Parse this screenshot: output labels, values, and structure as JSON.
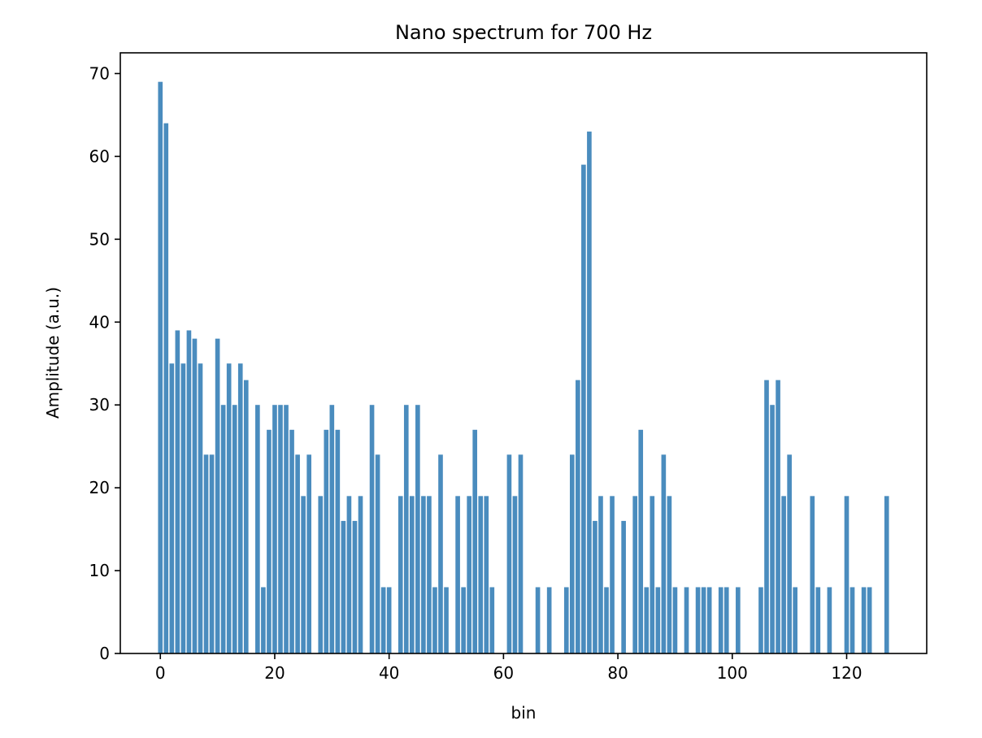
{
  "chart_data": {
    "type": "bar",
    "title": "Nano spectrum for 700 Hz",
    "xlabel": "bin",
    "ylabel": "Amplitude (a.u.)",
    "xlim": [
      -7,
      134
    ],
    "ylim": [
      0,
      72.5
    ],
    "xticks": [
      0,
      20,
      40,
      60,
      80,
      100,
      120
    ],
    "yticks": [
      0,
      10,
      20,
      30,
      40,
      50,
      60,
      70
    ],
    "grid": false,
    "legend": "none",
    "bar_color": "#4a8cbe",
    "x": [
      0,
      1,
      2,
      3,
      4,
      5,
      6,
      7,
      8,
      9,
      10,
      11,
      12,
      13,
      14,
      15,
      16,
      17,
      18,
      19,
      20,
      21,
      22,
      23,
      24,
      25,
      26,
      27,
      28,
      29,
      30,
      31,
      32,
      33,
      34,
      35,
      36,
      37,
      38,
      39,
      40,
      41,
      42,
      43,
      44,
      45,
      46,
      47,
      48,
      49,
      50,
      51,
      52,
      53,
      54,
      55,
      56,
      57,
      58,
      59,
      60,
      61,
      62,
      63,
      64,
      65,
      66,
      67,
      68,
      69,
      70,
      71,
      72,
      73,
      74,
      75,
      76,
      77,
      78,
      79,
      80,
      81,
      82,
      83,
      84,
      85,
      86,
      87,
      88,
      89,
      90,
      91,
      92,
      93,
      94,
      95,
      96,
      97,
      98,
      99,
      100,
      101,
      102,
      103,
      104,
      105,
      106,
      107,
      108,
      109,
      110,
      111,
      112,
      113,
      114,
      115,
      116,
      117,
      118,
      119,
      120,
      121,
      122,
      123,
      124,
      125,
      126,
      127
    ],
    "values": [
      69,
      64,
      35,
      39,
      35,
      39,
      38,
      35,
      24,
      24,
      38,
      30,
      35,
      30,
      35,
      33,
      0,
      30,
      8,
      27,
      30,
      30,
      30,
      27,
      24,
      19,
      24,
      0,
      19,
      27,
      30,
      27,
      16,
      19,
      16,
      19,
      0,
      30,
      24,
      8,
      8,
      0,
      19,
      30,
      19,
      30,
      19,
      19,
      8,
      24,
      8,
      0,
      19,
      8,
      19,
      27,
      19,
      19,
      8,
      0,
      0,
      24,
      19,
      24,
      0,
      0,
      8,
      0,
      8,
      0,
      0,
      8,
      24,
      33,
      59,
      63,
      16,
      19,
      8,
      19,
      0,
      16,
      0,
      19,
      27,
      8,
      19,
      8,
      24,
      19,
      8,
      0,
      8,
      0,
      8,
      8,
      8,
      0,
      8,
      8,
      0,
      8,
      0,
      0,
      0,
      8,
      33,
      30,
      33,
      19,
      24,
      8,
      0,
      0,
      19,
      8,
      0,
      8,
      0,
      0,
      19,
      8,
      0,
      8,
      8,
      0,
      0,
      19
    ]
  }
}
